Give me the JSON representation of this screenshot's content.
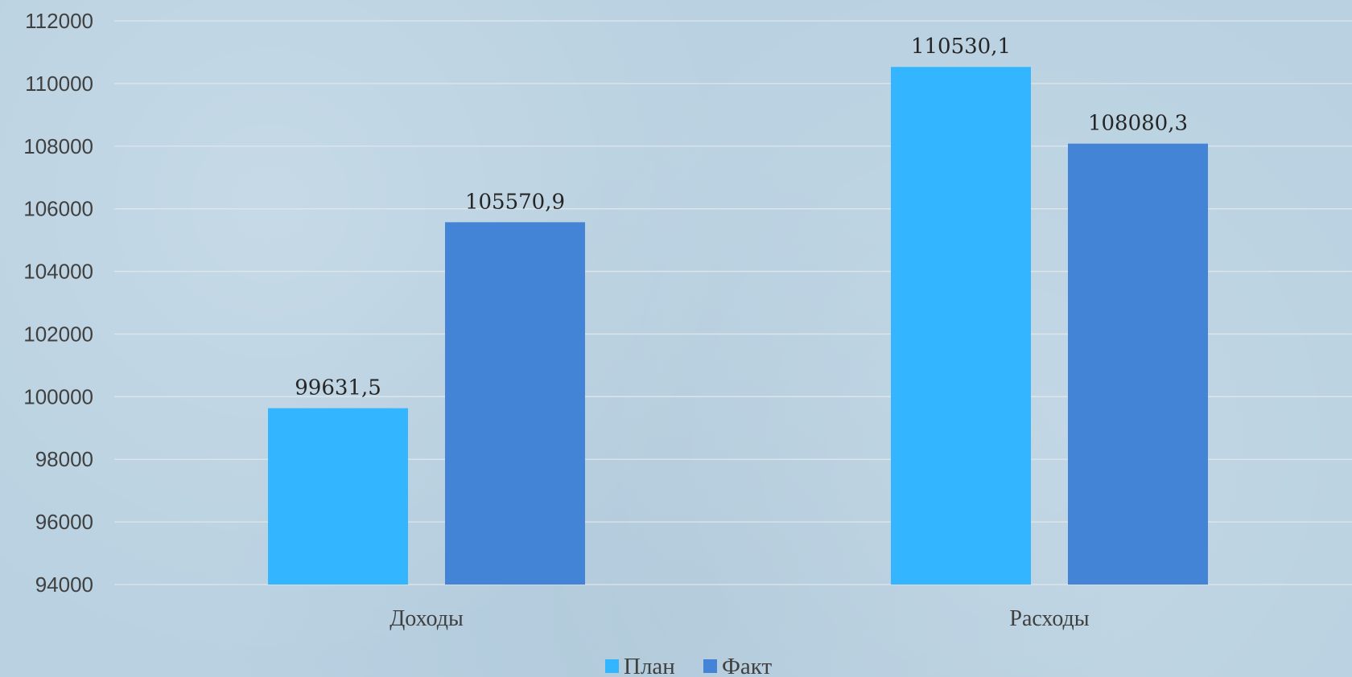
{
  "chart_data": {
    "type": "bar",
    "categories": [
      "Доходы",
      "Расходы"
    ],
    "series": [
      {
        "name": "План",
        "values": [
          99631.5,
          110530.1
        ],
        "labels": [
          "99631,5",
          "110530,1"
        ],
        "color": "#33b5ff"
      },
      {
        "name": "Факт",
        "values": [
          105570.9,
          108080.3
        ],
        "labels": [
          "105570,9",
          "108080,3"
        ],
        "color": "#4384d6"
      }
    ],
    "title": "",
    "xlabel": "",
    "ylabel": "",
    "ylim": [
      94000,
      112000
    ],
    "yticks": [
      94000,
      96000,
      98000,
      100000,
      102000,
      104000,
      106000,
      108000,
      110000,
      112000
    ],
    "grid": true,
    "legend": "bottom"
  }
}
